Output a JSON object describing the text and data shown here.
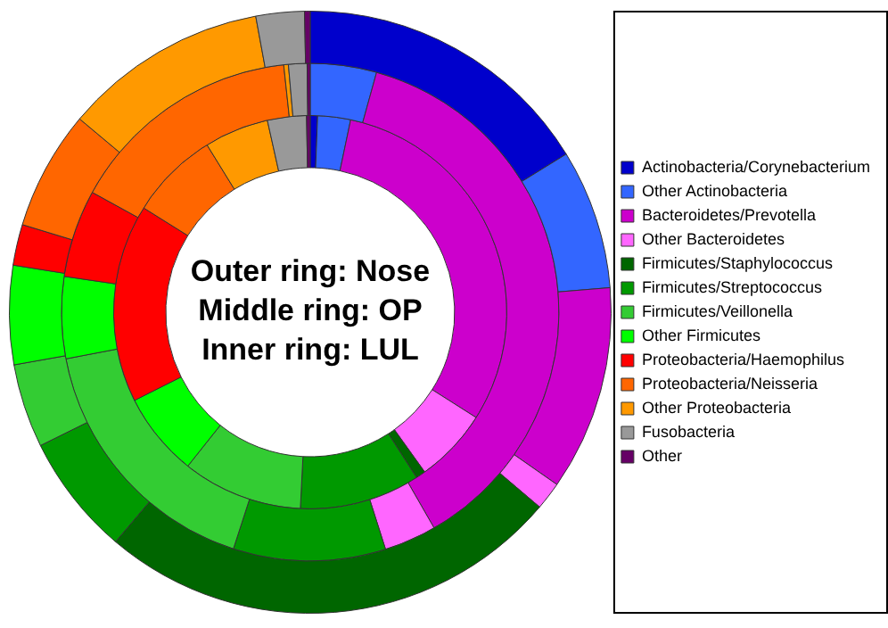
{
  "chart_data": {
    "type": "donut",
    "categories": [
      "Actinobacteria/Corynebacterium",
      "Other Actinobacteria",
      "Bacteroidetes/Prevotella",
      "Other Bacteroidetes",
      "Firmicutes/Staphylococcus",
      "Firmicutes/Streptococcus",
      "Firmicutes/Veillonella",
      "Other Firmicutes",
      "Proteobacteria/Haemophilus",
      "Proteobacteria/Neisseria",
      "Other Proteobacteria",
      "Fusobacteria",
      "Other"
    ],
    "colors": [
      "#0000cc",
      "#3366ff",
      "#cc00cc",
      "#ff66ff",
      "#006600",
      "#009900",
      "#33cc33",
      "#00ff00",
      "#ff0000",
      "#ff6600",
      "#ff9900",
      "#999999",
      "#660066"
    ],
    "series": [
      {
        "values": [
          16.2,
          7.5,
          11,
          1.5,
          25,
          6.5,
          4.5,
          5.3,
          2.2,
          6.4,
          11,
          2.6,
          0.3
        ]
      },
      {
        "values": [
          0,
          4.3,
          37.4,
          3.4,
          0,
          9.9,
          17,
          5.3,
          5.7,
          15.3,
          0.3,
          1.2,
          0.2
        ]
      },
      {
        "values": [
          0.6,
          2.7,
          30.7,
          6.1,
          0.8,
          9.9,
          9.9,
          6.9,
          16.3,
          7.3,
          5.3,
          3.2,
          0.3
        ]
      }
    ],
    "annotations": [
      "Outer ring: Nose",
      "Middle ring: OP",
      "Inner ring: LUL"
    ],
    "legend": "right"
  }
}
